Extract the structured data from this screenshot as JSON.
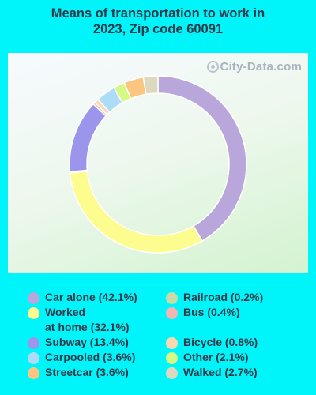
{
  "chart_data": {
    "type": "donut",
    "title_line1": "Means of transportation to work in",
    "title_line2": "2023, Zip code 60091",
    "watermark": "City-Data.com",
    "slices": [
      {
        "name": "Car alone",
        "value": 42.1,
        "label": "Car alone (42.1%)",
        "color": "#b9a6da"
      },
      {
        "name": "Worked at home",
        "value": 32.1,
        "label_line1": "Worked",
        "label_line2": "at home (32.1%)",
        "color": "#fdfd8f"
      },
      {
        "name": "Railroad",
        "value": 0.2,
        "label": "Railroad (0.2%)",
        "color": "#c9d9a8"
      },
      {
        "name": "Subway",
        "value": 13.4,
        "label": "Subway (13.4%)",
        "color": "#9c95ec"
      },
      {
        "name": "Bus",
        "value": 0.4,
        "label": "Bus (0.4%)",
        "color": "#f4b6b2"
      },
      {
        "name": "Bicycle",
        "value": 0.8,
        "label": "Bicycle (0.8%)",
        "color": "#fcd8b0"
      },
      {
        "name": "Carpooled",
        "value": 3.6,
        "label": "Carpooled (3.6%)",
        "color": "#addcf8"
      },
      {
        "name": "Other",
        "value": 2.1,
        "label": "Other (2.1%)",
        "color": "#d5f984"
      },
      {
        "name": "Streetcar",
        "value": 3.6,
        "label": "Streetcar (3.6%)",
        "color": "#fdc680"
      },
      {
        "name": "Walked",
        "value": 2.7,
        "label": "Walked (2.7%)",
        "color": "#dcd9bf"
      }
    ],
    "legend_placement": "bottom"
  }
}
